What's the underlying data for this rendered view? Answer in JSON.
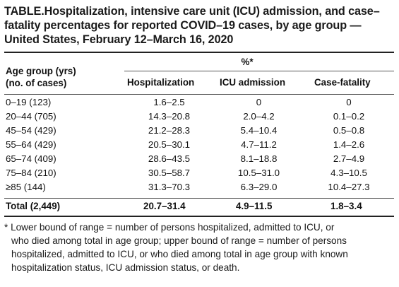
{
  "title": {
    "lead": "TABLE.",
    "text": "Hospitalization, intensive care unit (ICU) admission, and case–fatality percentages for reported COVID–19 cases, by age group — United States, February 12–March 16, 2020"
  },
  "table": {
    "stub_header_line1": "Age group (yrs)",
    "stub_header_line2": "(no. of cases)",
    "spanner": "%*",
    "columns": [
      "Hospitalization",
      "ICU admission",
      "Case-fatality"
    ],
    "rows": [
      {
        "age": "0–19 (123)",
        "hospitalization": "1.6–2.5",
        "icu": "0",
        "fatality": "0"
      },
      {
        "age": "20–44 (705)",
        "hospitalization": "14.3–20.8",
        "icu": "2.0–4.2",
        "fatality": "0.1–0.2"
      },
      {
        "age": "45–54 (429)",
        "hospitalization": "21.2–28.3",
        "icu": "5.4–10.4",
        "fatality": "0.5–0.8"
      },
      {
        "age": "55–64 (429)",
        "hospitalization": "20.5–30.1",
        "icu": "4.7–11.2",
        "fatality": "1.4–2.6"
      },
      {
        "age": "65–74 (409)",
        "hospitalization": "28.6–43.5",
        "icu": "8.1–18.8",
        "fatality": "2.7–4.9"
      },
      {
        "age": "75–84 (210)",
        "hospitalization": "30.5–58.7",
        "icu": "10.5–31.0",
        "fatality": "4.3–10.5"
      },
      {
        "age": "≥85 (144)",
        "hospitalization": "31.3–70.3",
        "icu": "6.3–29.0",
        "fatality": "10.4–27.3"
      }
    ],
    "total": {
      "age": "Total (2,449)",
      "hospitalization": "20.7–31.4",
      "icu": "4.9–11.5",
      "fatality": "1.8–3.4"
    }
  },
  "footnote": {
    "line1": "* Lower bound of range = number of persons hospitalized, admitted to ICU, or",
    "line2": "who died among total in age group; upper bound of range = number of persons hospitalized, admitted to ICU, or who died among total in age group with known hospitalization status, ICU admission status, or death."
  }
}
